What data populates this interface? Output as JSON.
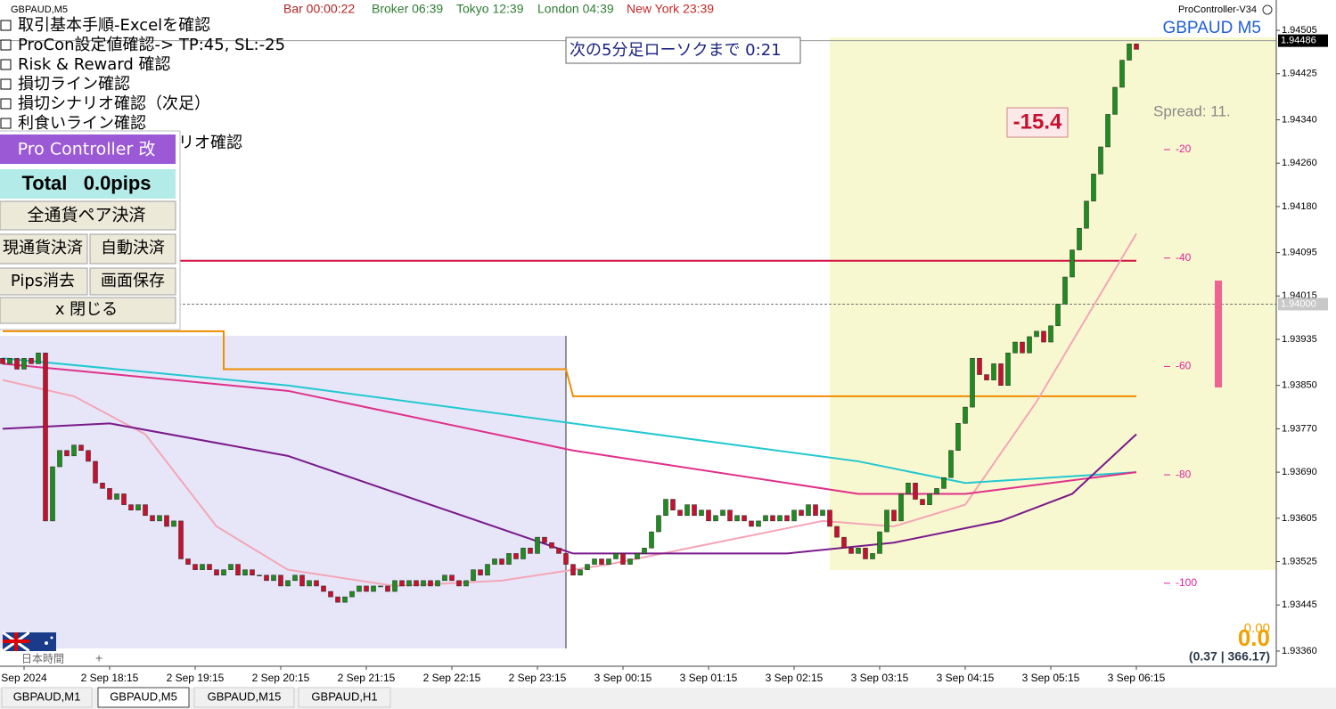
{
  "window": {
    "symbol_tab": "GBPAUD,M5",
    "bar": "Bar 00:00:22",
    "broker": "Broker 06:39",
    "tokyo": "Tokyo 12:39",
    "london": "London 04:39",
    "newyork": "New York 23:39",
    "indicator": "ProController-V34",
    "countdown": "次の5分足ローソクまで 0:21",
    "pl": "-15.4",
    "spread": "Spread: 11.",
    "pips_scale": [
      "-20",
      "-40",
      "-60",
      "-80",
      "-100"
    ],
    "small_total": "0.00",
    "big_total": "0.0",
    "ratio": "(0.37 | 366.17)",
    "timezone": "日本時間",
    "add": "+",
    "tabs": [
      "GBPAUD,M1",
      "GBPAUD,M5",
      "GBPAUD,M15",
      "GBPAUD,H1"
    ]
  },
  "checklist": [
    "取引基本手順-Excelを確認",
    "ProCon設定値確認-> TP:45, SL:-25",
    "Risk & Reward 確認",
    "損切ライン確認",
    "損切シナリオ確認（次足）",
    "利食いライン確認",
    "リオ確認"
  ],
  "panel": {
    "title": "Pro Controller 改",
    "total": "Total   0.0pips",
    "close_all": "全通貨ペア決済",
    "close_current": "現通貨決済",
    "auto_close": "自動決済",
    "clear_pips": "Pips消去",
    "save_screen": "画面保存",
    "close": "x 閉じる"
  },
  "chart_data": {
    "type": "candlestick",
    "title": "GBPAUD M5",
    "up_color": "#1e8c1e",
    "down_color": "#c80f2e",
    "open": [
      1.939,
      1.9389,
      1.939,
      1.9388,
      1.939,
      1.9389,
      1.9391,
      1.936,
      1.937,
      1.9373,
      1.9372,
      1.9374,
      1.9373,
      1.9371,
      1.9367,
      1.9366,
      1.9364,
      1.9365,
      1.9363,
      1.9362,
      1.9363,
      1.9361,
      1.936,
      1.9361,
      1.9359,
      1.936,
      1.9353,
      1.9352,
      1.9351,
      1.9352,
      1.9351,
      1.935,
      1.9351,
      1.9352,
      1.935,
      1.9351,
      1.935,
      1.935,
      1.9349,
      1.935,
      1.9348,
      1.9349,
      1.935,
      1.9348,
      1.9349,
      1.9348,
      1.9347,
      1.9346,
      1.9345,
      1.9346,
      1.9347,
      1.9348,
      1.9347,
      1.9348,
      1.9348,
      1.9347,
      1.9349,
      1.9348,
      1.9349,
      1.9348,
      1.9349,
      1.9348,
      1.9349,
      1.935,
      1.9349,
      1.9348,
      1.9349,
      1.9351,
      1.935,
      1.9352,
      1.9353,
      1.9352,
      1.9354,
      1.9353,
      1.9355,
      1.9354,
      1.9357,
      1.9356,
      1.9355,
      1.9354,
      1.9352,
      1.935,
      1.9351,
      1.9352,
      1.9353,
      1.9352,
      1.9353,
      1.9354,
      1.9352,
      1.9353,
      1.9354,
      1.9355,
      1.9358,
      1.9361,
      1.9364,
      1.9362,
      1.9361,
      1.9363,
      1.9361,
      1.9362,
      1.936,
      1.9361,
      1.9362,
      1.936,
      1.9361,
      1.936,
      1.9359,
      1.936,
      1.9361,
      1.936,
      1.9361,
      1.936,
      1.9362,
      1.9361,
      1.9363,
      1.9361,
      1.9362,
      1.9359,
      1.9357,
      1.9355,
      1.9354,
      1.9355,
      1.9353,
      1.9354,
      1.9358,
      1.9362,
      1.936,
      1.9365,
      1.9367,
      1.9364,
      1.9363,
      1.9365,
      1.9366,
      1.9368,
      1.9373,
      1.9378,
      1.9381,
      1.939,
      1.9387,
      1.9386,
      1.9389,
      1.9385,
      1.9391,
      1.9393,
      1.9391,
      1.9394,
      1.9395,
      1.9393,
      1.9396,
      1.94,
      1.9405,
      1.941,
      1.9414,
      1.9419,
      1.9424,
      1.9429,
      1.9435,
      1.944,
      1.9445,
      1.9448
    ],
    "close": [
      1.9389,
      1.939,
      1.9388,
      1.939,
      1.9389,
      1.9391,
      1.936,
      1.937,
      1.9373,
      1.9372,
      1.9374,
      1.9373,
      1.9371,
      1.9367,
      1.9366,
      1.9364,
      1.9365,
      1.9363,
      1.9362,
      1.9363,
      1.9361,
      1.936,
      1.9361,
      1.9359,
      1.936,
      1.9353,
      1.9352,
      1.9351,
      1.9352,
      1.9351,
      1.935,
      1.9351,
      1.9352,
      1.935,
      1.9351,
      1.935,
      1.935,
      1.9349,
      1.935,
      1.9348,
      1.9349,
      1.935,
      1.9348,
      1.9349,
      1.9348,
      1.9347,
      1.9346,
      1.9345,
      1.9346,
      1.9347,
      1.9348,
      1.9347,
      1.9348,
      1.9348,
      1.9347,
      1.9349,
      1.9348,
      1.9349,
      1.9348,
      1.9349,
      1.9348,
      1.9349,
      1.935,
      1.9349,
      1.9348,
      1.9349,
      1.9351,
      1.935,
      1.9352,
      1.9353,
      1.9352,
      1.9354,
      1.9353,
      1.9355,
      1.9354,
      1.9357,
      1.9356,
      1.9355,
      1.9354,
      1.9352,
      1.935,
      1.9351,
      1.9352,
      1.9353,
      1.9352,
      1.9353,
      1.9354,
      1.9352,
      1.9353,
      1.9354,
      1.9355,
      1.9358,
      1.9361,
      1.9364,
      1.9362,
      1.9361,
      1.9363,
      1.9361,
      1.9362,
      1.936,
      1.9361,
      1.9362,
      1.936,
      1.9361,
      1.936,
      1.9359,
      1.936,
      1.9361,
      1.936,
      1.9361,
      1.936,
      1.9362,
      1.9361,
      1.9363,
      1.9361,
      1.9362,
      1.9359,
      1.9357,
      1.9355,
      1.9354,
      1.9355,
      1.9353,
      1.9354,
      1.9358,
      1.9362,
      1.936,
      1.9365,
      1.9367,
      1.9364,
      1.9363,
      1.9365,
      1.9366,
      1.9368,
      1.9373,
      1.9378,
      1.9381,
      1.939,
      1.9387,
      1.9386,
      1.9389,
      1.9385,
      1.9391,
      1.9393,
      1.9391,
      1.9394,
      1.9395,
      1.9393,
      1.9396,
      1.94,
      1.9405,
      1.941,
      1.9414,
      1.9419,
      1.9424,
      1.9429,
      1.9435,
      1.944,
      1.9445,
      1.9448,
      1.9447
    ],
    "xlim": [
      -0.375,
      178.625
    ],
    "xticks": [
      {
        "value": 3,
        "label": "Sep 2024"
      },
      {
        "value": 15,
        "label": "2 Sep 18:15"
      },
      {
        "value": 27,
        "label": "2 Sep 19:15"
      },
      {
        "value": 39,
        "label": "2 Sep 20:15"
      },
      {
        "value": 51,
        "label": "2 Sep 21:15"
      },
      {
        "value": 63,
        "label": "2 Sep 22:15"
      },
      {
        "value": 75,
        "label": "2 Sep 23:15"
      },
      {
        "value": 87,
        "label": "3 Sep 00:15"
      },
      {
        "value": 99,
        "label": "3 Sep 01:15"
      },
      {
        "value": 111,
        "label": "3 Sep 02:15"
      },
      {
        "value": 123,
        "label": "3 Sep 03:15"
      },
      {
        "value": 135,
        "label": "3 Sep 04:15"
      },
      {
        "value": 147,
        "label": "3 Sep 05:15"
      },
      {
        "value": 159,
        "label": "3 Sep 06:15"
      }
    ],
    "ylim": [
      1.93332,
      1.94561
    ],
    "yticks": [
      1.94505,
      1.94425,
      {
        "value": 1.9434,
        "label": "1.94340"
      },
      {
        "value": 1.9426,
        "label": "1.94260"
      },
      {
        "value": 1.9418,
        "label": "1.94180"
      },
      1.94095,
      1.94015,
      1.93935,
      {
        "value": 1.9385,
        "label": "1.93850"
      },
      {
        "value": 1.9377,
        "label": "1.93770"
      },
      {
        "value": 1.9369,
        "label": "1.93690"
      },
      1.93605,
      1.93525,
      1.93445,
      {
        "value": 1.9336,
        "label": "1.93360"
      }
    ],
    "current_price": 1.94486,
    "price_line": {
      "value": 1.94,
      "label": "1.94000"
    },
    "level": {
      "value": 1.9408,
      "color": "#d01040"
    },
    "overlays": [
      {
        "color": "#f08c00",
        "x": [
          0,
          31,
          31,
          79,
          80,
          159
        ],
        "values": [
          1.9395,
          1.9395,
          1.9388,
          1.9388,
          1.9383,
          1.9383
        ]
      },
      {
        "color": "#f4a6b6",
        "x": [
          0,
          10,
          20,
          30,
          40,
          55,
          70,
          85,
          100,
          115,
          125,
          135,
          145,
          159
        ],
        "values": [
          1.9386,
          1.9383,
          1.9376,
          1.9359,
          1.9351,
          1.9348,
          1.9349,
          1.9352,
          1.9356,
          1.936,
          1.9359,
          1.9363,
          1.9382,
          1.9413
        ]
      },
      {
        "color": "#22c8d0",
        "x": [
          0,
          40,
          80,
          120,
          135,
          159
        ],
        "values": [
          1.939,
          1.9385,
          1.9378,
          1.9371,
          1.9367,
          1.9369
        ]
      },
      {
        "color": "#e0308a",
        "x": [
          0,
          40,
          80,
          120,
          135,
          159
        ],
        "values": [
          1.9389,
          1.9384,
          1.9373,
          1.9365,
          1.9365,
          1.9369
        ]
      },
      {
        "color": "#7a1a8a",
        "x": [
          0,
          15,
          40,
          80,
          110,
          125,
          140,
          150,
          159
        ],
        "values": [
          1.9377,
          1.9378,
          1.9372,
          1.9354,
          1.9354,
          1.9356,
          1.936,
          1.9365,
          1.9376
        ]
      }
    ]
  }
}
